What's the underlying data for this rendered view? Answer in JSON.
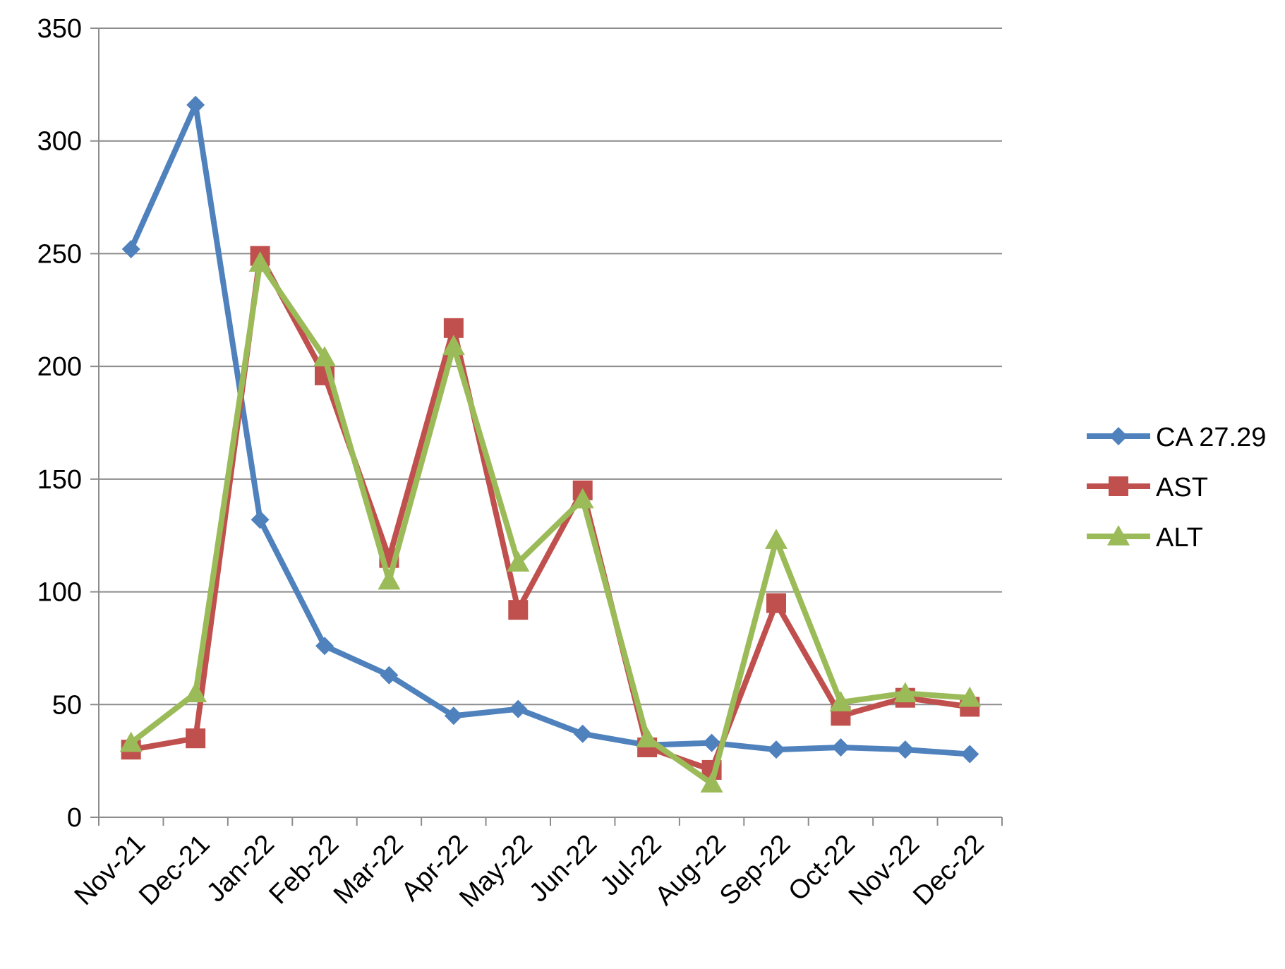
{
  "chart_data": {
    "type": "line",
    "title": "",
    "xlabel": "",
    "ylabel": "",
    "categories": [
      "Nov-21",
      "Dec-21",
      "Jan-22",
      "Feb-22",
      "Mar-22",
      "Apr-22",
      "May-22",
      "Jun-22",
      "Jul-22",
      "Aug-22",
      "Sep-22",
      "Oct-22",
      "Nov-22",
      "Dec-22"
    ],
    "ylim": [
      0,
      350
    ],
    "yticks": [
      0,
      50,
      100,
      150,
      200,
      250,
      300,
      350
    ],
    "grid": true,
    "legend_position": "right",
    "series": [
      {
        "name": "CA 27.29",
        "color": "#4F81BD",
        "marker": "diamond",
        "values": [
          252,
          316,
          132,
          76,
          63,
          45,
          48,
          37,
          32,
          33,
          30,
          31,
          30,
          28
        ]
      },
      {
        "name": "AST",
        "color": "#C0504D",
        "marker": "square",
        "values": [
          30,
          35,
          249,
          196,
          115,
          217,
          92,
          145,
          31,
          21,
          95,
          45,
          53,
          49
        ]
      },
      {
        "name": "ALT",
        "color": "#9BBB59",
        "marker": "triangle",
        "values": [
          33,
          55,
          246,
          204,
          105,
          209,
          113,
          141,
          35,
          15,
          123,
          51,
          55,
          53
        ]
      }
    ]
  }
}
